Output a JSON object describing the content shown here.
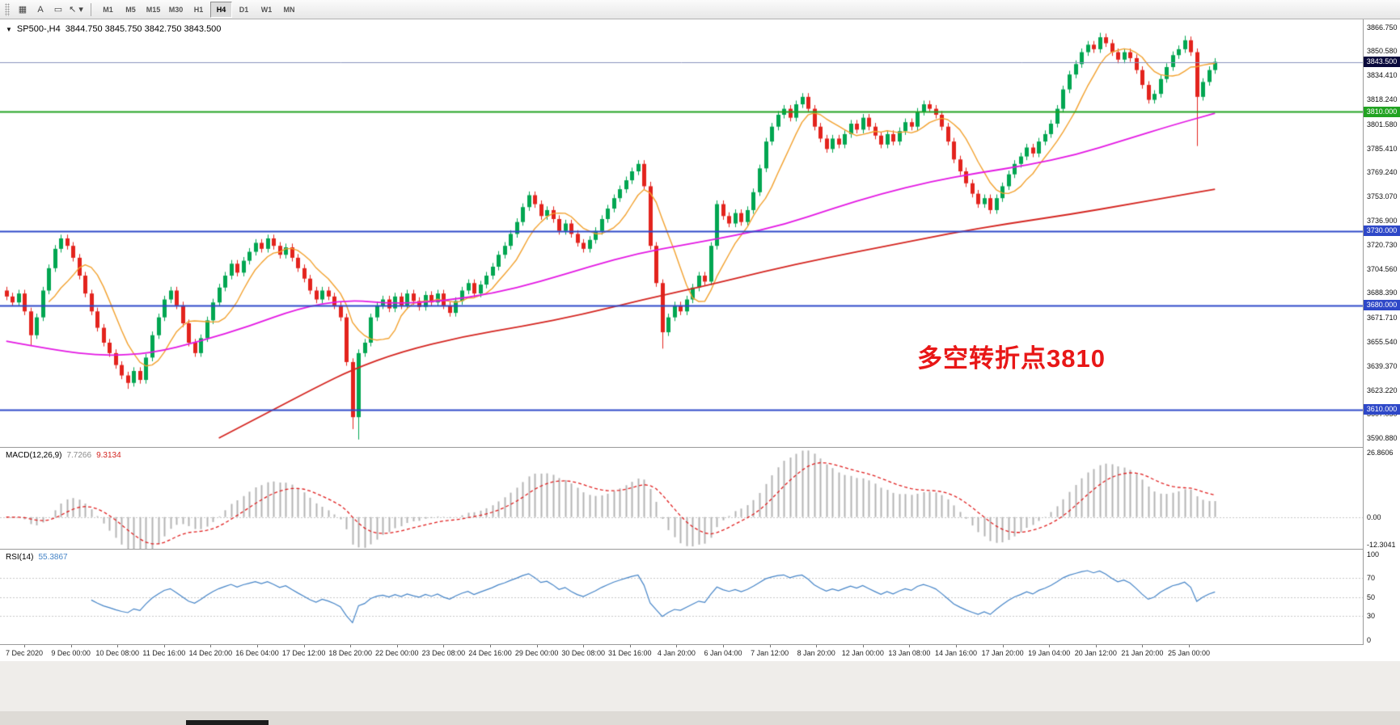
{
  "glyphs": {
    "chart_dropdown": "▼"
  },
  "toolbar": {
    "icon_buttons": [
      {
        "name": "charts-grid-icon",
        "glyph": "▦"
      },
      {
        "name": "text-label-icon",
        "glyph": "A"
      },
      {
        "name": "text-box-icon",
        "glyph": "▭"
      },
      {
        "name": "cursor-tool-icon",
        "glyph": "↖ ▾"
      }
    ],
    "timeframes": [
      "M1",
      "M5",
      "M15",
      "M30",
      "H1",
      "H4",
      "D1",
      "W1",
      "MN"
    ],
    "active_timeframe": "H4"
  },
  "main_header": {
    "symbol_period": "SP500-,H4",
    "ohlc_values": "3844.750 3845.750 3842.750 3843.500"
  },
  "chart_data": {
    "type": "candlestick",
    "symbol": "SP500-",
    "timeframe": "H4",
    "ohlc_display": {
      "open": "3844.750",
      "high": "3845.750",
      "low": "3842.750",
      "close": "3843.500"
    },
    "colors": {
      "up": "#00a651",
      "down": "#e3231d",
      "macd_hist": "#b4b4b4",
      "macd_signal": "#e02020",
      "rsi_line": "#4584c7",
      "annotation": "#e81717"
    },
    "price_axis": {
      "min": 3585,
      "max": 3872,
      "ticks": [
        "3866.750",
        "3850.580",
        "3834.410",
        "3818.240",
        "3801.580",
        "3785.410",
        "3769.240",
        "3753.070",
        "3736.900",
        "3720.730",
        "3704.560",
        "3688.390",
        "3671.710",
        "3655.540",
        "3639.370",
        "3623.220",
        "3607.050",
        "3590.880"
      ]
    },
    "price_levels": [
      {
        "value": 3843.5,
        "label": "3843.500",
        "style": "current",
        "badge": "#0a0a3c",
        "line": "#8a93bd"
      },
      {
        "value": 3810.0,
        "label": "3810.000",
        "style": "hline",
        "badge": "#22a322",
        "line": "#22a322"
      },
      {
        "value": 3730.0,
        "label": "3730.000",
        "style": "hline",
        "badge": "#2e48c8",
        "line": "#2e48c8"
      },
      {
        "value": 3680.0,
        "label": "3680.000",
        "style": "hline",
        "badge": "#2e48c8",
        "line": "#2e48c8"
      },
      {
        "value": 3610.0,
        "label": "3610.000",
        "style": "hline",
        "badge": "#2e48c8",
        "line": "#2e48c8"
      }
    ],
    "candles": {
      "first_open": 3690,
      "default_wick": 2.5,
      "closes": [
        3686,
        3682,
        3688,
        3676,
        3660,
        3672,
        3690,
        3705,
        3718,
        3725,
        3720,
        3712,
        3700,
        3688,
        3676,
        3665,
        3655,
        3648,
        3640,
        3633,
        3628,
        3636,
        3630,
        3645,
        3660,
        3672,
        3684,
        3690,
        3680,
        3668,
        3655,
        3648,
        3658,
        3670,
        3682,
        3692,
        3700,
        3708,
        3702,
        3710,
        3716,
        3722,
        3718,
        3725,
        3720,
        3714,
        3719,
        3712,
        3705,
        3698,
        3690,
        3684,
        3690,
        3686,
        3680,
        3672,
        3642,
        3605,
        3648,
        3655,
        3672,
        3680,
        3684,
        3678,
        3686,
        3680,
        3688,
        3683,
        3679,
        3687,
        3682,
        3688,
        3680,
        3675,
        3683,
        3690,
        3695,
        3688,
        3694,
        3700,
        3706,
        3714,
        3720,
        3728,
        3736,
        3746,
        3754,
        3748,
        3740,
        3744,
        3738,
        3730,
        3735,
        3728,
        3722,
        3718,
        3724,
        3730,
        3738,
        3745,
        3752,
        3758,
        3764,
        3770,
        3775,
        3760,
        3720,
        3695,
        3662,
        3672,
        3680,
        3676,
        3684,
        3692,
        3700,
        3696,
        3720,
        3748,
        3740,
        3735,
        3742,
        3736,
        3744,
        3756,
        3772,
        3790,
        3800,
        3808,
        3812,
        3806,
        3815,
        3820,
        3812,
        3800,
        3792,
        3785,
        3792,
        3788,
        3795,
        3802,
        3798,
        3806,
        3800,
        3794,
        3788,
        3795,
        3790,
        3797,
        3803,
        3800,
        3810,
        3815,
        3812,
        3808,
        3800,
        3790,
        3778,
        3770,
        3762,
        3755,
        3748,
        3752,
        3744,
        3752,
        3760,
        3768,
        3775,
        3780,
        3786,
        3782,
        3790,
        3795,
        3802,
        3812,
        3825,
        3835,
        3842,
        3850,
        3855,
        3852,
        3860,
        3856,
        3850,
        3845,
        3850,
        3846,
        3838,
        3828,
        3818,
        3822,
        3832,
        3840,
        3848,
        3852,
        3858,
        3850,
        3820,
        3830,
        3838,
        3843.5
      ],
      "wick_overrides": {
        "4": {
          "low": 3653
        },
        "20": {
          "low": 3624
        },
        "57": {
          "low": 3597
        },
        "58": {
          "low": 3590
        },
        "106": {
          "high": 3763
        },
        "108": {
          "low": 3651
        },
        "180": {
          "high": 3863
        },
        "194": {
          "high": 3861
        },
        "196": {
          "low": 3787
        }
      }
    },
    "moving_averages": [
      {
        "name": "ma-fast",
        "color": "#f2a12e",
        "width": 1.4,
        "type": "sma",
        "period": 8
      },
      {
        "name": "ma-medium",
        "color": "#e318e3",
        "width": 1.8,
        "type": "points",
        "points": [
          [
            0,
            3656
          ],
          [
            8,
            3650
          ],
          [
            16,
            3646
          ],
          [
            24,
            3648
          ],
          [
            32,
            3656
          ],
          [
            40,
            3666
          ],
          [
            48,
            3678
          ],
          [
            56,
            3684
          ],
          [
            64,
            3681
          ],
          [
            72,
            3683
          ],
          [
            80,
            3688
          ],
          [
            88,
            3696
          ],
          [
            96,
            3706
          ],
          [
            104,
            3715
          ],
          [
            112,
            3721
          ],
          [
            120,
            3727
          ],
          [
            128,
            3734
          ],
          [
            136,
            3745
          ],
          [
            144,
            3755
          ],
          [
            152,
            3763
          ],
          [
            160,
            3769
          ],
          [
            168,
            3774
          ],
          [
            176,
            3781
          ],
          [
            184,
            3791
          ],
          [
            192,
            3801
          ],
          [
            199,
            3809
          ]
        ]
      },
      {
        "name": "ma-slow",
        "color": "#d42520",
        "width": 1.8,
        "type": "points",
        "points": [
          [
            35,
            3591
          ],
          [
            43,
            3608
          ],
          [
            51,
            3625
          ],
          [
            57,
            3637
          ],
          [
            65,
            3649
          ],
          [
            75,
            3659
          ],
          [
            85,
            3666
          ],
          [
            95,
            3674
          ],
          [
            105,
            3684
          ],
          [
            115,
            3693
          ],
          [
            125,
            3703
          ],
          [
            135,
            3712
          ],
          [
            145,
            3720
          ],
          [
            155,
            3728
          ],
          [
            165,
            3735
          ],
          [
            175,
            3741
          ],
          [
            185,
            3748
          ],
          [
            192,
            3753
          ],
          [
            199,
            3758
          ]
        ]
      }
    ],
    "annotation": {
      "text": "多空转折点3810",
      "color": "#e81717"
    },
    "x_axis": {
      "labels": [
        "7 Dec 2020",
        "9 Dec 00:00",
        "10 Dec 08:00",
        "11 Dec 16:00",
        "14 Dec 20:00",
        "16 Dec 04:00",
        "17 Dec 12:00",
        "18 Dec 20:00",
        "22 Dec 00:00",
        "23 Dec 08:00",
        "24 Dec 16:00",
        "29 Dec 00:00",
        "30 Dec 08:00",
        "31 Dec 16:00",
        "4 Jan 20:00",
        "6 Jan 04:00",
        "7 Jan 12:00",
        "8 Jan 20:00",
        "12 Jan 00:00",
        "13 Jan 08:00",
        "14 Jan 16:00",
        "17 Jan 20:00",
        "19 Jan 04:00",
        "20 Jan 12:00",
        "21 Jan 20:00",
        "25 Jan 00:00"
      ]
    },
    "macd": {
      "label": "MACD(12,26,9)",
      "value_main": "7.7266",
      "value_signal": "9.3134",
      "fast": 12,
      "slow": 26,
      "signal": 9,
      "axis": {
        "min": -12.3041,
        "max": 26.8606,
        "ticks": [
          "26.8606",
          "0.00",
          "-12.3041"
        ]
      }
    },
    "rsi": {
      "label": "RSI(14)",
      "value": "55.3867",
      "period": 14,
      "levels": [
        70,
        50,
        30
      ],
      "axis_ticks": [
        "100",
        "70",
        "50",
        "30",
        "0"
      ]
    }
  }
}
